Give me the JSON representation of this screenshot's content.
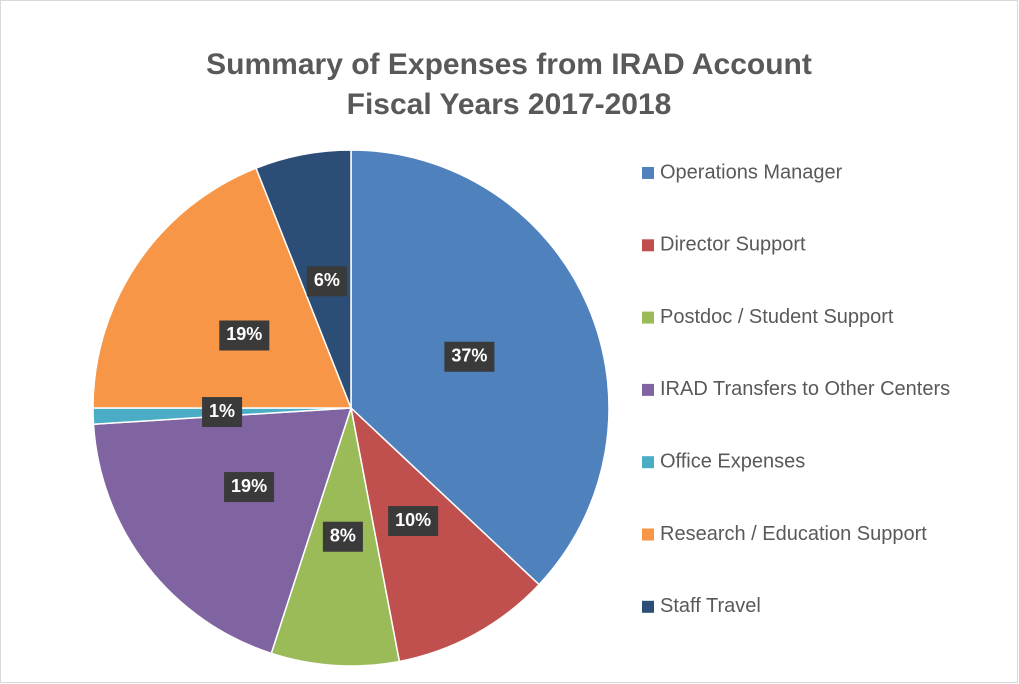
{
  "chart_data": {
    "type": "pie",
    "title": "Summary of Expenses from IRAD Account",
    "subtitle": "Fiscal Years 2017-2018",
    "categories": [
      "Operations Manager",
      "Director Support",
      "Postdoc / Student Support",
      "IRAD Transfers to Other Centers",
      "Office Expenses",
      "Research / Education Support",
      "Staff Travel"
    ],
    "values": [
      37,
      10,
      8,
      19,
      1,
      19,
      6
    ],
    "value_labels": [
      "37%",
      "10%",
      "8%",
      "19%",
      "1%",
      "19%",
      "6%"
    ],
    "colors": [
      "#4f81bd",
      "#c0504d",
      "#9bbb59",
      "#8064a2",
      "#4bacc6",
      "#f79646",
      "#2c4d75"
    ],
    "legend": "right"
  }
}
